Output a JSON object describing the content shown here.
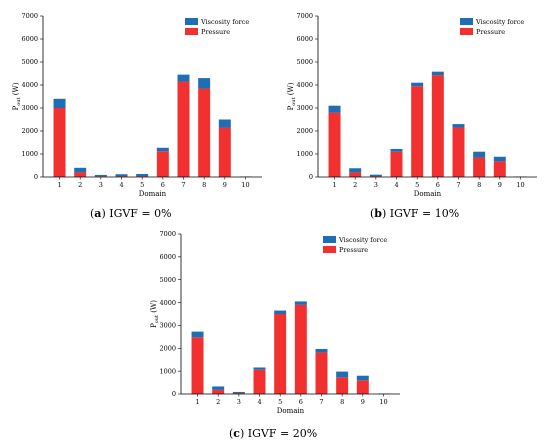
{
  "colors": {
    "pressure": "#f23030",
    "viscosity": "#1f6db5",
    "axis": "#000000"
  },
  "captions": [
    {
      "letter": "a",
      "text": " IGVF = 0%"
    },
    {
      "letter": "b",
      "text": " IGVF = 10%"
    },
    {
      "letter": "c",
      "text": " IGVF = 20%"
    }
  ],
  "chart_data": [
    {
      "type": "bar",
      "stacked": true,
      "xlabel": "Domain",
      "ylabel_main": "P",
      "ylabel_sub": "out",
      "ylabel_unit": " (W)",
      "ylim": [
        0,
        7000
      ],
      "yticks": [
        0,
        1000,
        2000,
        3000,
        4000,
        5000,
        6000,
        7000
      ],
      "categories": [
        "1",
        "2",
        "3",
        "4",
        "5",
        "6",
        "7",
        "8",
        "9",
        "10"
      ],
      "legend_position": "top-right",
      "series": [
        {
          "name": "Viscosity force",
          "values": [
            400,
            200,
            60,
            80,
            90,
            150,
            300,
            450,
            350,
            20
          ]
        },
        {
          "name": "Pressure",
          "values": [
            3000,
            200,
            30,
            40,
            40,
            1120,
            4150,
            3850,
            2150,
            0
          ]
        }
      ]
    },
    {
      "type": "bar",
      "stacked": true,
      "xlabel": "Domain",
      "ylabel_main": "P",
      "ylabel_sub": "out",
      "ylabel_unit": " (W)",
      "ylim": [
        0,
        7000
      ],
      "yticks": [
        0,
        1000,
        2000,
        3000,
        4000,
        5000,
        6000,
        7000
      ],
      "categories": [
        "1",
        "2",
        "3",
        "4",
        "5",
        "6",
        "7",
        "8",
        "9",
        "10"
      ],
      "legend_position": "top-right",
      "series": [
        {
          "name": "Viscosity force",
          "values": [
            300,
            180,
            60,
            120,
            150,
            150,
            150,
            250,
            200,
            20
          ]
        },
        {
          "name": "Pressure",
          "values": [
            2800,
            200,
            40,
            1100,
            3950,
            4430,
            2150,
            850,
            680,
            0
          ]
        }
      ]
    },
    {
      "type": "bar",
      "stacked": true,
      "xlabel": "Domain",
      "ylabel_main": "P",
      "ylabel_sub": "out",
      "ylabel_unit": " (W)",
      "ylim": [
        0,
        7000
      ],
      "yticks": [
        0,
        1000,
        2000,
        3000,
        4000,
        5000,
        6000,
        7000
      ],
      "categories": [
        "1",
        "2",
        "3",
        "4",
        "5",
        "6",
        "7",
        "8",
        "9",
        "10"
      ],
      "legend_position": "top-right",
      "series": [
        {
          "name": "Viscosity force",
          "values": [
            250,
            150,
            50,
            100,
            150,
            150,
            150,
            250,
            200,
            20
          ]
        },
        {
          "name": "Pressure",
          "values": [
            2480,
            180,
            40,
            1060,
            3500,
            3900,
            1820,
            730,
            600,
            0
          ]
        }
      ]
    }
  ]
}
